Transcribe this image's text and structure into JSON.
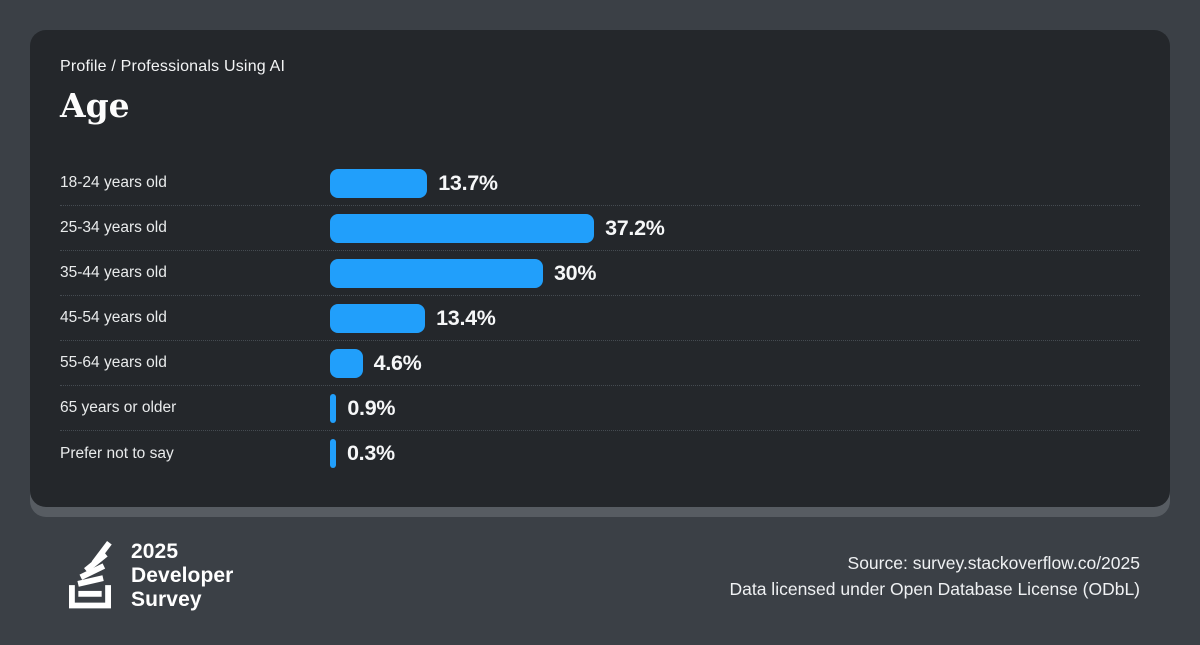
{
  "card": {
    "breadcrumb": "Profile / Professionals Using AI",
    "title": "Age"
  },
  "chart_data": {
    "type": "bar",
    "orientation": "horizontal",
    "title": "Age",
    "subtitle": "Profile / Professionals Using AI",
    "categories": [
      "18-24 years old",
      "25-34 years old",
      "35-44 years old",
      "45-54 years old",
      "55-64 years old",
      "65 years or older",
      "Prefer not to say"
    ],
    "values": [
      13.7,
      37.2,
      30,
      13.4,
      4.6,
      0.9,
      0.3
    ],
    "value_labels": [
      "13.7%",
      "37.2%",
      "30%",
      "13.4%",
      "4.6%",
      "0.9%",
      "0.3%"
    ],
    "unit": "%",
    "xlim": [
      0,
      100
    ],
    "grid": false,
    "legend": false,
    "bar_color": "#219ffb",
    "card_background": "#24272b",
    "page_background": "#3b4046"
  },
  "footer": {
    "logo": {
      "icon": "stackoverflow-logo-icon",
      "line1": "2025",
      "line2": "Developer",
      "line3": "Survey"
    },
    "source_line": "Source: survey.stackoverflow.co/2025",
    "license_line": "Data licensed under Open Database License (ODbL)"
  }
}
